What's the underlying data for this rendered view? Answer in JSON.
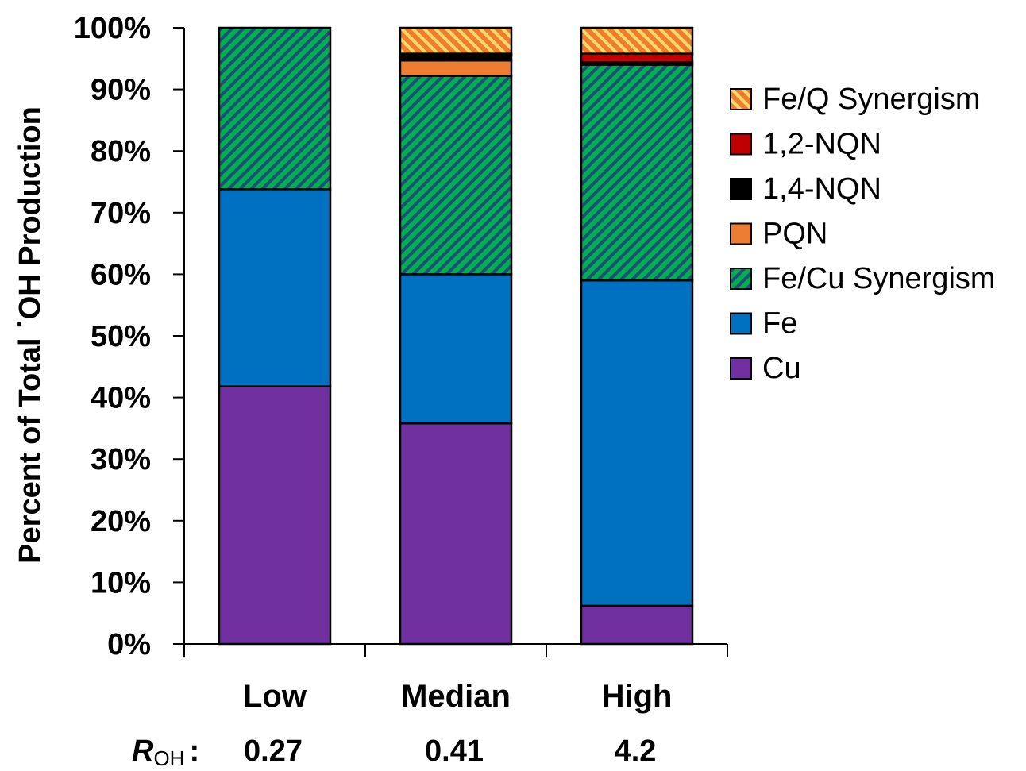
{
  "chart_data": {
    "type": "bar",
    "stacked": true,
    "categories": [
      "Low",
      "Median",
      "High"
    ],
    "ylabel": "Percent of Total ˙OH Production",
    "ylim": [
      0,
      100
    ],
    "yticks": [
      "0%",
      "10%",
      "20%",
      "30%",
      "40%",
      "50%",
      "60%",
      "70%",
      "80%",
      "90%",
      "100%"
    ],
    "row_label_main": "R",
    "row_label_sub": "OH",
    "row_label_sep": ":",
    "row_values": [
      "0.27",
      "0.41",
      "4.2"
    ],
    "legend_position": "right",
    "series": [
      {
        "name": "Cu",
        "color": "#7030a0",
        "pattern": "solid",
        "values": [
          41.8,
          35.8,
          6.2
        ]
      },
      {
        "name": "Fe",
        "color": "#0070c0",
        "pattern": "solid",
        "values": [
          32.0,
          24.2,
          52.8
        ]
      },
      {
        "name": "Fe/Cu Synergism",
        "color": "#00b050",
        "pattern": "hatch-dark",
        "values": [
          26.2,
          32.2,
          35.0
        ]
      },
      {
        "name": "PQN",
        "color": "#ed7d31",
        "pattern": "solid",
        "values": [
          0,
          2.5,
          0
        ]
      },
      {
        "name": "1,4-NQN",
        "color": "#000000",
        "pattern": "solid",
        "values": [
          0,
          0.8,
          0.4
        ]
      },
      {
        "name": "1,2-NQN",
        "color": "#c00000",
        "pattern": "solid",
        "values": [
          0,
          0.3,
          1.4
        ]
      },
      {
        "name": "Fe/Q Synergism",
        "color": "#ed7d31",
        "pattern": "hatch-yellow",
        "values": [
          0,
          4.2,
          4.2
        ]
      }
    ]
  }
}
